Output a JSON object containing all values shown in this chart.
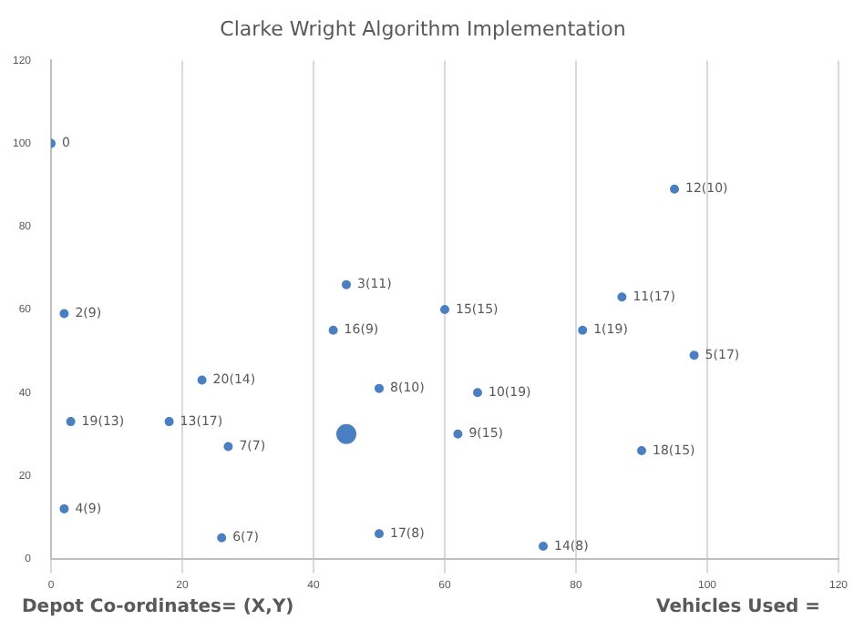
{
  "chart_data": {
    "type": "scatter",
    "title": "Clarke Wright Algorithm Implementation",
    "series": [
      {
        "color": "#4a7fc1",
        "marker": "circle",
        "x": [
          0,
          95,
          45,
          2,
          60,
          87,
          43,
          81,
          98,
          23,
          50,
          65,
          3,
          18,
          62,
          27,
          90,
          2,
          26,
          50,
          75
        ],
        "values": [
          100,
          89,
          66,
          59,
          60,
          63,
          55,
          55,
          49,
          43,
          41,
          40,
          33,
          33,
          30,
          27,
          26,
          12,
          5,
          6,
          3
        ]
      },
      {
        "type": "bubble",
        "color": "#4a7fc1",
        "x": [
          45
        ],
        "values": [
          30
        ],
        "sizes": [
          1
        ]
      }
    ],
    "xlim": [
      0,
      120
    ],
    "xticks": [
      0,
      20,
      40,
      60,
      80,
      100,
      120
    ],
    "ylim": [
      0,
      120
    ],
    "yticks": [
      0,
      20,
      40,
      60,
      80,
      100,
      120
    ],
    "grid": "x",
    "legend": false,
    "annotations": [
      {
        "text": "0",
        "x": 0,
        "y": 100
      },
      {
        "text": "12(10)",
        "x": 95,
        "y": 89
      },
      {
        "text": "3(11)",
        "x": 45,
        "y": 66
      },
      {
        "text": "2(9)",
        "x": 2,
        "y": 59
      },
      {
        "text": "15(15)",
        "x": 60,
        "y": 60
      },
      {
        "text": "11(17)",
        "x": 87,
        "y": 63
      },
      {
        "text": "16(9)",
        "x": 43,
        "y": 55
      },
      {
        "text": "1(19)",
        "x": 81,
        "y": 55
      },
      {
        "text": "5(17)",
        "x": 98,
        "y": 49
      },
      {
        "text": "20(14)",
        "x": 23,
        "y": 43
      },
      {
        "text": "8(10)",
        "x": 50,
        "y": 41
      },
      {
        "text": "10(19)",
        "x": 65,
        "y": 40
      },
      {
        "text": "19(13)",
        "x": 3,
        "y": 33
      },
      {
        "text": "13(17)",
        "x": 18,
        "y": 33
      },
      {
        "text": "9(15)",
        "x": 62,
        "y": 30
      },
      {
        "text": "7(7)",
        "x": 27,
        "y": 27
      },
      {
        "text": "18(15)",
        "x": 90,
        "y": 26
      },
      {
        "text": "4(9)",
        "x": 2,
        "y": 12
      },
      {
        "text": "6(7)",
        "x": 26,
        "y": 5
      },
      {
        "text": "17(8)",
        "x": 50,
        "y": 6
      },
      {
        "text": "14(8)",
        "x": 75,
        "y": 3
      },
      "Depot Co-ordinates= (X,Y)",
      "Vehicles Used ="
    ]
  }
}
